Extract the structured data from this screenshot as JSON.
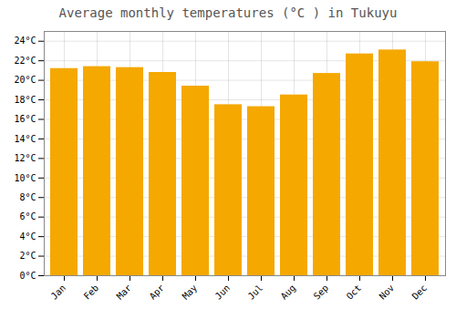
{
  "chart_data": {
    "type": "bar",
    "title": "Average monthly temperatures (°C ) in Tukuyu",
    "categories": [
      "Jan",
      "Feb",
      "Mar",
      "Apr",
      "May",
      "Jun",
      "Jul",
      "Aug",
      "Sep",
      "Oct",
      "Nov",
      "Dec"
    ],
    "values": [
      21.2,
      21.4,
      21.3,
      20.8,
      19.4,
      17.5,
      17.3,
      18.5,
      20.7,
      22.7,
      23.1,
      21.9
    ],
    "color": "#F5A800",
    "ylim": [
      0,
      25
    ],
    "yticks": [
      {
        "value": 0,
        "label": "0°C"
      },
      {
        "value": 2,
        "label": "2°C"
      },
      {
        "value": 4,
        "label": "4°C"
      },
      {
        "value": 6,
        "label": "6°C"
      },
      {
        "value": 8,
        "label": "8°C"
      },
      {
        "value": 10,
        "label": "10°C"
      },
      {
        "value": 12,
        "label": "12°C"
      },
      {
        "value": 14,
        "label": "14°C"
      },
      {
        "value": 16,
        "label": "16°C"
      },
      {
        "value": 18,
        "label": "18°C"
      },
      {
        "value": 20,
        "label": "20°C"
      },
      {
        "value": 22,
        "label": "22°C"
      },
      {
        "value": 24,
        "label": "24°C"
      }
    ],
    "grid": true
  }
}
